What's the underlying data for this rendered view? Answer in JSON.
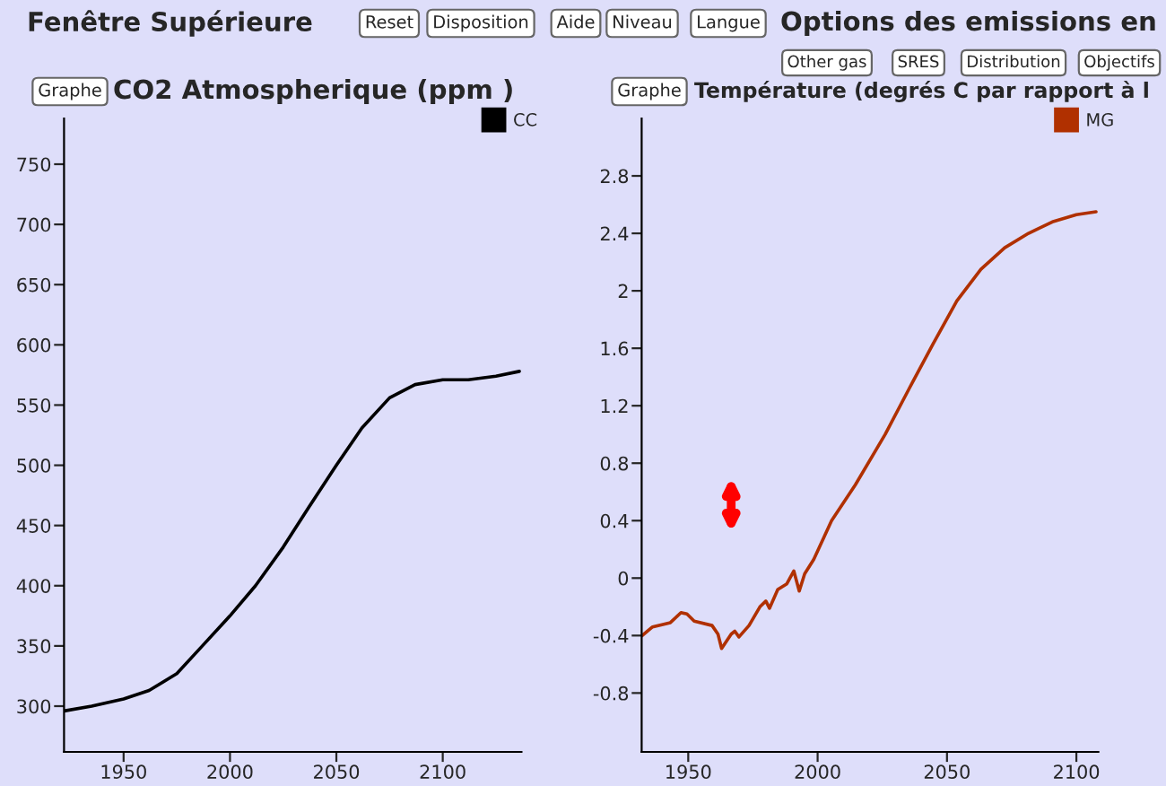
{
  "chart_data": [
    {
      "type": "line",
      "title": "CO2 Atmospherique (ppm )",
      "annotations": [
        "Fenêtre Supérieure",
        "Reset",
        "Disposition",
        "Aide",
        "Niveau",
        "Langue",
        "Graphe"
      ],
      "x": [
        1922,
        1935,
        1950,
        1962,
        1975,
        1987,
        2000,
        2012,
        2025,
        2037,
        2050,
        2062,
        2075,
        2087,
        2100,
        2112,
        2125,
        2136
      ],
      "series": [
        {
          "name": "CC",
          "color": "#000000",
          "values": [
            296,
            300,
            306,
            313,
            327,
            350,
            375,
            400,
            432,
            465,
            500,
            531,
            556,
            567,
            571,
            571,
            574,
            578
          ]
        }
      ],
      "xlim": [
        1922,
        2137
      ],
      "xticks": [
        1950,
        2000,
        2050,
        2100
      ],
      "ylim": [
        262,
        788
      ],
      "yticks": [
        300,
        350,
        400,
        450,
        500,
        550,
        600,
        650,
        700,
        750
      ],
      "grid": false,
      "legend": "top right",
      "marker": "none",
      "line_style": "solid"
    },
    {
      "type": "line",
      "title": "Température (degrés C par rapport à l",
      "annotations": [
        "Options des emissions en",
        "Other gas",
        "SRES",
        "Distribution",
        "Objectifs",
        "Graphe"
      ],
      "x": [
        1932.2,
        1936.2,
        1943.1,
        1947.2,
        1949.5,
        1952.3,
        1959.2,
        1961.5,
        1962.9,
        1966.6,
        1968,
        1969.6,
        1973.5,
        1977.7,
        1980,
        1981.4,
        1984.6,
        1988.1,
        1990.8,
        1992.9,
        1995,
        1998.5,
        2005.4,
        2014.6,
        2026.1,
        2035.4,
        2044.6,
        2053.8,
        2063.1,
        2072.3,
        2081.5,
        2090.7,
        2100,
        2107.6
      ],
      "series": [
        {
          "name": "MG",
          "color": "#b03000",
          "values": [
            -0.4,
            -0.34,
            -0.31,
            -0.24,
            -0.25,
            -0.3,
            -0.33,
            -0.39,
            -0.49,
            -0.39,
            -0.37,
            -0.41,
            -0.33,
            -0.2,
            -0.16,
            -0.21,
            -0.08,
            -0.04,
            0.05,
            -0.09,
            0.03,
            0.13,
            0.4,
            0.65,
            1.0,
            1.32,
            1.63,
            1.93,
            2.15,
            2.3,
            2.4,
            2.48,
            2.53,
            2.55
          ]
        }
      ],
      "xlim": [
        1932,
        2108.5
      ],
      "xticks": [
        1950,
        2000,
        2050,
        2100
      ],
      "ylim": [
        -1.21,
        3.2
      ],
      "yticks": [
        -0.8,
        -0.4,
        0,
        0.4,
        0.8,
        1.2,
        1.6,
        2,
        2.4,
        2.8
      ],
      "grid": false,
      "legend": "top right",
      "marker": "none",
      "line_style": "solid"
    }
  ]
}
